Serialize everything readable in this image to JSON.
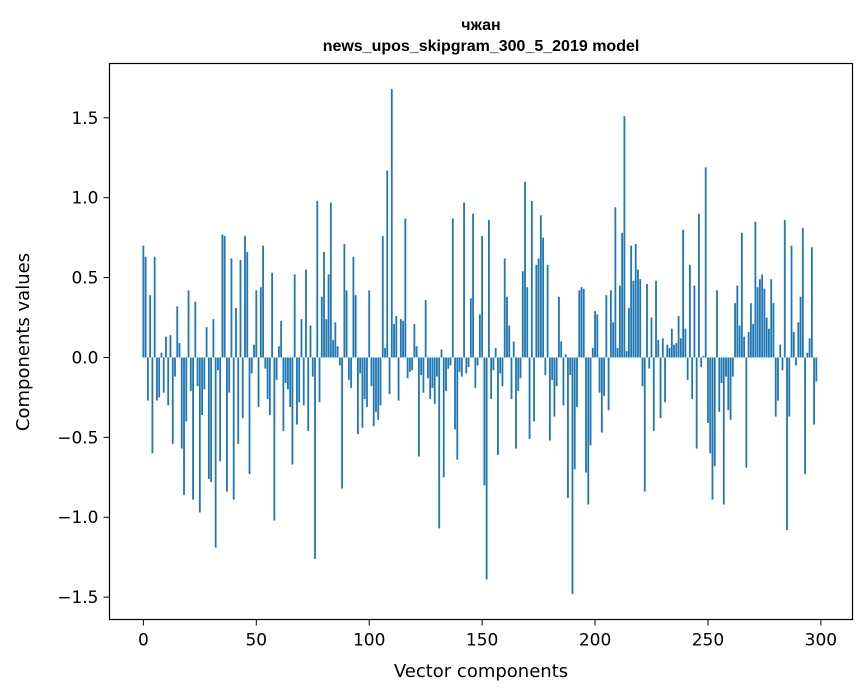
{
  "chart_data": {
    "type": "bar",
    "title_lines": [
      "чжан",
      "news_upos_skipgram_300_5_2019 model"
    ],
    "xlabel": "Vector components",
    "ylabel": "Components values",
    "xlim": [
      -15,
      314
    ],
    "ylim": [
      -1.64,
      1.84
    ],
    "xticks": [
      0,
      50,
      100,
      150,
      200,
      250,
      300
    ],
    "xtick_labels": [
      "0",
      "50",
      "100",
      "150",
      "200",
      "250",
      "300"
    ],
    "yticks": [
      -1.5,
      -1.0,
      -0.5,
      0.0,
      0.5,
      1.0,
      1.5
    ],
    "ytick_labels": [
      "−1.5",
      "−1.0",
      "−0.5",
      "0.0",
      "0.5",
      "1.0",
      "1.5"
    ],
    "bar_color": "#1f77b4",
    "values": [
      0.7,
      0.63,
      -0.27,
      0.39,
      -0.6,
      0.63,
      -0.27,
      -0.25,
      0.03,
      -0.22,
      0.13,
      -0.3,
      0.14,
      -0.54,
      -0.12,
      0.32,
      0.09,
      -0.57,
      -0.86,
      -0.4,
      0.42,
      -0.21,
      -0.89,
      0.35,
      -0.18,
      -0.97,
      -0.36,
      -0.2,
      0.19,
      -0.76,
      -0.78,
      0.24,
      -1.19,
      -0.08,
      -0.65,
      0.77,
      0.76,
      -0.84,
      -0.22,
      0.62,
      -0.89,
      0.31,
      -0.54,
      0.61,
      -0.38,
      0.76,
      0.66,
      -0.73,
      -0.1,
      0.08,
      0.42,
      -0.31,
      0.44,
      0.7,
      -0.07,
      -0.26,
      -0.36,
      0.53,
      -1.02,
      -0.14,
      0.07,
      0.23,
      -0.46,
      -0.16,
      -0.2,
      -0.31,
      -0.67,
      0.52,
      -0.42,
      -0.28,
      0.24,
      -0.3,
      0.55,
      -0.46,
      0.2,
      -0.12,
      -1.26,
      0.98,
      -0.28,
      0.38,
      0.66,
      0.24,
      0.52,
      0.97,
      0.11,
      0.22,
      0.07,
      -0.05,
      -0.82,
      0.71,
      0.42,
      -0.14,
      -0.19,
      0.63,
      0.39,
      -0.48,
      -0.1,
      -0.44,
      -0.26,
      -0.31,
      0.42,
      -0.18,
      -0.43,
      -0.34,
      -0.39,
      -0.3,
      0.76,
      0.06,
      1.17,
      -0.23,
      1.68,
      0.21,
      0.26,
      -0.27,
      0.24,
      0.23,
      0.87,
      -0.13,
      -0.09,
      -0.08,
      0.21,
      0.07,
      -0.62,
      -0.11,
      -0.22,
      0.36,
      -0.13,
      -0.26,
      -0.19,
      -0.29,
      -0.12,
      -1.07,
      0.05,
      -0.75,
      -0.21,
      -0.07,
      -0.05,
      0.87,
      -0.45,
      -0.64,
      -0.09,
      -0.12,
      0.97,
      -0.1,
      -0.06,
      0.37,
      0.9,
      -0.19,
      -0.05,
      0.27,
      0.76,
      -0.8,
      -1.39,
      0.86,
      -0.26,
      -0.08,
      0.06,
      -0.61,
      -0.1,
      -0.18,
      0.62,
      0.38,
      0.2,
      -0.26,
      0.1,
      -0.57,
      -0.21,
      -0.13,
      0.54,
      1.1,
      0.44,
      -0.51,
      0.98,
      -0.4,
      0.58,
      0.62,
      0.89,
      0.75,
      -0.11,
      0.58,
      -0.52,
      -0.14,
      -0.37,
      -0.18,
      0.38,
      0.1,
      -0.3,
      0.02,
      -0.88,
      -0.11,
      -1.48,
      -0.7,
      -0.31,
      0.42,
      0.44,
      0.43,
      -0.72,
      -0.92,
      -0.55,
      0.06,
      0.29,
      0.27,
      -0.22,
      -0.47,
      -0.24,
      0.39,
      -0.33,
      0.42,
      0.22,
      0.94,
      0.06,
      0.45,
      0.78,
      1.51,
      0.04,
      0.31,
      0.7,
      0.48,
      0.71,
      0.55,
      0.49,
      -0.18,
      -0.84,
      0.46,
      -0.07,
      0.25,
      -0.46,
      0.48,
      0.11,
      -0.38,
      0.12,
      -0.28,
      0.08,
      0.06,
      0.18,
      0.08,
      0.09,
      0.26,
      0.12,
      0.8,
      0.18,
      -0.14,
      0.58,
      -0.26,
      0.45,
      -0.57,
      0.9,
      -0.06,
      0.01,
      1.19,
      -0.41,
      -0.6,
      -0.89,
      -0.68,
      0.42,
      -0.34,
      -0.16,
      -0.92,
      -0.12,
      -0.33,
      -0.39,
      -0.12,
      0.34,
      0.45,
      0.2,
      0.78,
      0.13,
      -0.69,
      0.16,
      0.34,
      0.21,
      0.85,
      0.44,
      0.49,
      0.52,
      0.43,
      0.25,
      0.18,
      0.49,
      0.34,
      -0.37,
      -0.27,
      0.08,
      -0.08,
      0.86,
      -1.08,
      -0.37,
      0.7,
      0.16,
      -0.05,
      0.22,
      0.38,
      0.81,
      -0.73,
      0.03,
      0.12,
      0.69,
      -0.42,
      -0.15
    ]
  }
}
